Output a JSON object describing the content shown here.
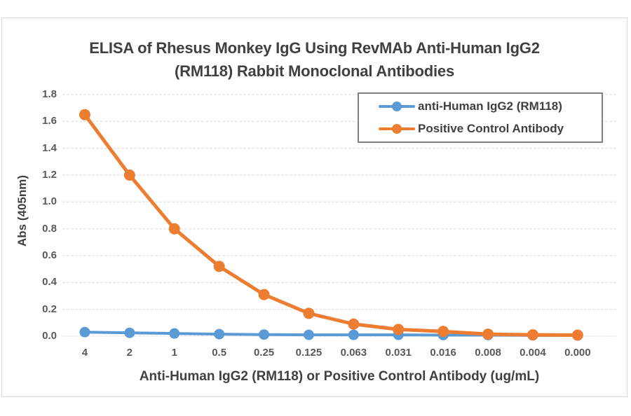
{
  "chart_data": {
    "type": "line",
    "title": "ELISA of Rhesus Monkey IgG Using RevMAb Anti-Human IgG2 (RM118) Rabbit Monoclonal Antibodies",
    "title_lines": [
      "ELISA of Rhesus Monkey IgG Using RevMAb Anti-Human IgG2",
      "(RM118) Rabbit Monoclonal Antibodies"
    ],
    "xlabel": "Anti-Human IgG2 (RM118) or Positive Control Antibody (ug/mL)",
    "ylabel": "Abs (405nm)",
    "categories": [
      "4",
      "2",
      "1",
      "0.5",
      "0.25",
      "0.125",
      "0.063",
      "0.031",
      "0.016",
      "0.008",
      "0.004",
      "0.000"
    ],
    "ylim": [
      0,
      1.8
    ],
    "ytick_labels": [
      "0.0",
      "0.2",
      "0.4",
      "0.6",
      "0.8",
      "1.0",
      "1.2",
      "1.4",
      "1.6",
      "1.8"
    ],
    "grid": true,
    "legend_position": "top-right-inside",
    "series": [
      {
        "name": "anti-Human IgG2 (RM118)",
        "color": "#5B9BD5",
        "values": [
          0.03,
          0.025,
          0.02,
          0.015,
          0.012,
          0.01,
          0.01,
          0.01,
          0.008,
          0.008,
          0.006,
          0.005
        ]
      },
      {
        "name": "Positive Control Antibody",
        "color": "#ED7D31",
        "values": [
          1.65,
          1.2,
          0.8,
          0.52,
          0.31,
          0.17,
          0.09,
          0.05,
          0.035,
          0.015,
          0.01,
          0.008
        ]
      }
    ],
    "colors": {
      "grid_line": "#E8E8E8",
      "tick_text": "#595959",
      "title_text": "#404040",
      "frame_border": "#D9D9D9",
      "legend_border": "#808080"
    }
  }
}
